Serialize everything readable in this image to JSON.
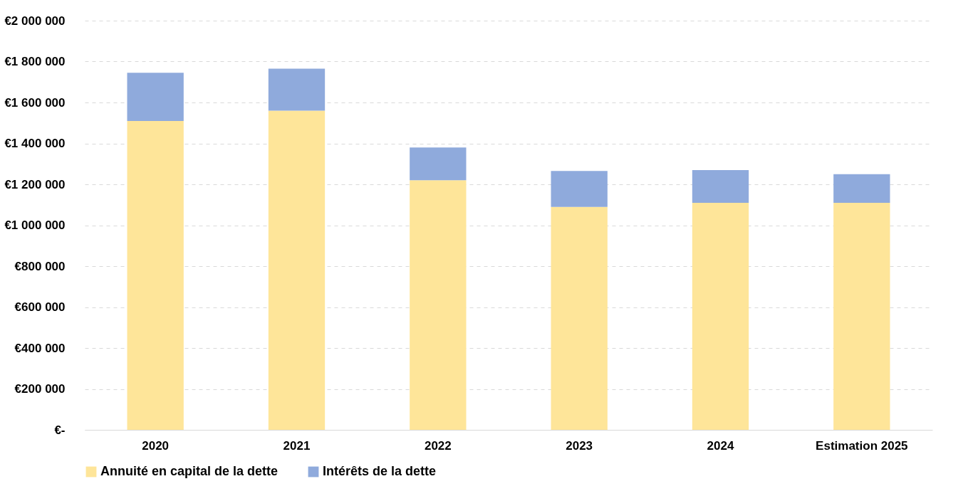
{
  "chart_data": {
    "type": "bar",
    "stacked": true,
    "categories": [
      "2020",
      "2021",
      "2022",
      "2023",
      "2024",
      "Estimation 2025"
    ],
    "series": [
      {
        "name": "Annuité en capital de la dette",
        "color": "#fee599",
        "values": [
          1510000,
          1560000,
          1220000,
          1090000,
          1110000,
          1110000
        ]
      },
      {
        "name": "Intérêts de la dette",
        "color": "#8faadc",
        "values": [
          235000,
          205000,
          160000,
          175000,
          160000,
          140000
        ]
      }
    ],
    "ylim": [
      0,
      2000000
    ],
    "yticks": [
      {
        "value": 0,
        "label": "€-"
      },
      {
        "value": 200000,
        "label": "€200 000"
      },
      {
        "value": 400000,
        "label": "€400 000"
      },
      {
        "value": 600000,
        "label": "€600 000"
      },
      {
        "value": 800000,
        "label": "€800 000"
      },
      {
        "value": 1000000,
        "label": "€1 000 000"
      },
      {
        "value": 1200000,
        "label": "€1 200 000"
      },
      {
        "value": 1400000,
        "label": "€1 400 000"
      },
      {
        "value": 1600000,
        "label": "€1 600 000"
      },
      {
        "value": 1800000,
        "label": "€1 800 000"
      },
      {
        "value": 2000000,
        "label": "€2 000 000"
      }
    ],
    "grid": "y",
    "legend": "bottom"
  }
}
